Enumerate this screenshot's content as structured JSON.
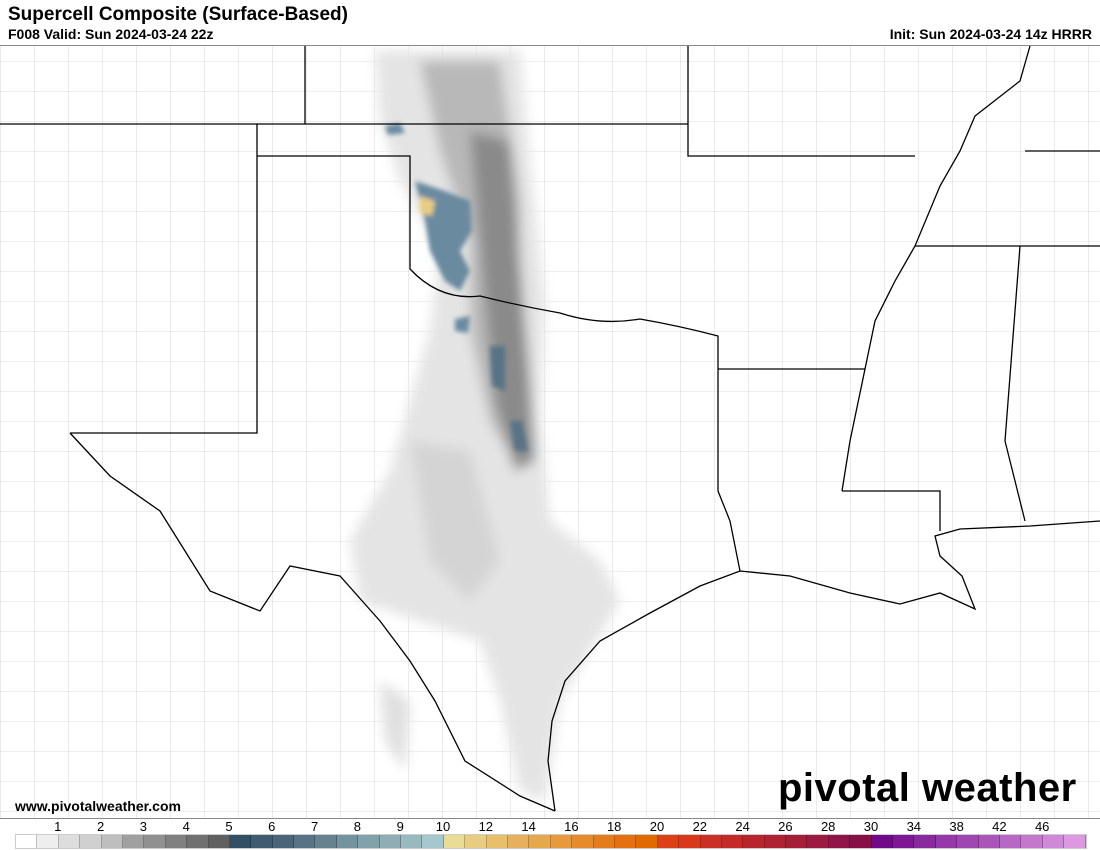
{
  "header": {
    "title": "Supercell Composite (Surface-Based)",
    "valid": "F008 Valid: Sun 2024-03-24 22z",
    "init": "Init: Sun 2024-03-24 14z HRRR"
  },
  "footer": {
    "website": "www.pivotalweather.com",
    "logo": "pivotal weather"
  },
  "colorbar": {
    "labels": [
      "1",
      "2",
      "3",
      "4",
      "5",
      "6",
      "7",
      "8",
      "9",
      "10",
      "12",
      "14",
      "16",
      "18",
      "20",
      "22",
      "24",
      "26",
      "28",
      "30",
      "34",
      "38",
      "42",
      "46"
    ],
    "colors": [
      "#ffffff",
      "#eeeeee",
      "#dddddd",
      "#d0d0d0",
      "#bebebe",
      "#a0a0a0",
      "#909090",
      "#808080",
      "#707070",
      "#606060",
      "#324f66",
      "#3f5b70",
      "#4a657a",
      "#587386",
      "#66828f",
      "#74939f",
      "#82a2ab",
      "#8fadb4",
      "#9ab9bf",
      "#a6c7ce",
      "#e8dc96",
      "#e8cc80",
      "#e8c06c",
      "#e6b05c",
      "#e6a84c",
      "#e69a3c",
      "#e68a2c",
      "#e47c1c",
      "#e47010",
      "#e26800",
      "#dc4018",
      "#d8381c",
      "#cc3024",
      "#c42a28",
      "#b8262c",
      "#ae2234",
      "#a41e38",
      "#9c1a40",
      "#901448",
      "#881048",
      "#700a88",
      "#7c1894",
      "#8a289e",
      "#9638a8",
      "#a046b0",
      "#aa56b8",
      "#b868c4",
      "#c478cc",
      "#d088d8",
      "#dc98e0"
    ]
  }
}
